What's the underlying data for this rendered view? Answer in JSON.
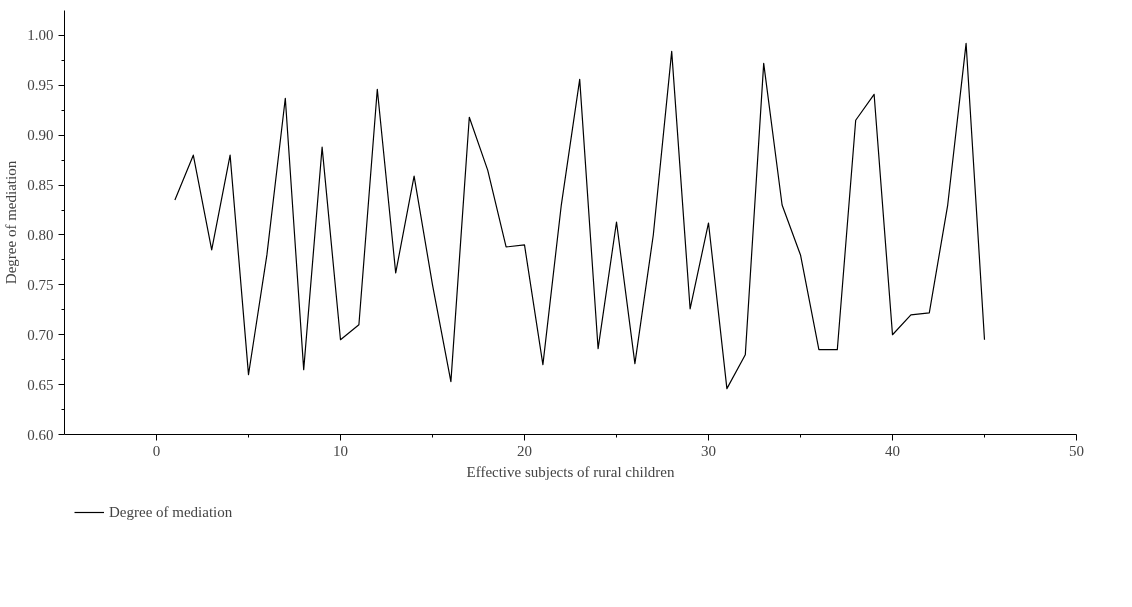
{
  "chart_data": {
    "type": "line",
    "xlabel": "Effective subjects of rural children",
    "ylabel": "Degree of mediation",
    "x": [
      1,
      2,
      3,
      4,
      5,
      6,
      7,
      8,
      9,
      10,
      11,
      12,
      13,
      14,
      15,
      16,
      17,
      18,
      19,
      20,
      21,
      22,
      23,
      24,
      25,
      26,
      27,
      28,
      29,
      30,
      31,
      32,
      33,
      34,
      35,
      36,
      37,
      38,
      39,
      40,
      41,
      42,
      43,
      44,
      45
    ],
    "series": [
      {
        "name": "Degree of mediation",
        "color": "#000000",
        "values": [
          0.835,
          0.88,
          0.785,
          0.88,
          0.66,
          0.78,
          0.937,
          0.665,
          0.888,
          0.695,
          0.71,
          0.946,
          0.762,
          0.859,
          0.75,
          0.653,
          0.918,
          0.865,
          0.788,
          0.79,
          0.67,
          0.83,
          0.956,
          0.686,
          0.813,
          0.671,
          0.8,
          0.984,
          0.726,
          0.812,
          0.646,
          0.68,
          0.972,
          0.83,
          0.78,
          0.685,
          0.685,
          0.915,
          0.941,
          0.7,
          0.72,
          0.722,
          0.83,
          0.992,
          0.695
        ]
      }
    ],
    "xlim": [
      -5,
      50
    ],
    "xticks": [
      0,
      10,
      20,
      30,
      40,
      50
    ],
    "ylim": [
      0.6,
      1.025
    ],
    "yticks": [
      {
        "value": 0.6,
        "label": "0.60"
      },
      {
        "value": 0.65,
        "label": "0.65"
      },
      {
        "value": 0.7,
        "label": "0.70"
      },
      {
        "value": 0.75,
        "label": "0.75"
      },
      {
        "value": 0.8,
        "label": "0.80"
      },
      {
        "value": 0.85,
        "label": "0.85"
      },
      {
        "value": 0.9,
        "label": "0.90"
      },
      {
        "value": 0.95,
        "label": "0.95"
      },
      {
        "value": 1.0,
        "label": "1.00"
      }
    ],
    "grid": false,
    "legend": "bottom left",
    "marker": "none",
    "line_style": "solid"
  }
}
